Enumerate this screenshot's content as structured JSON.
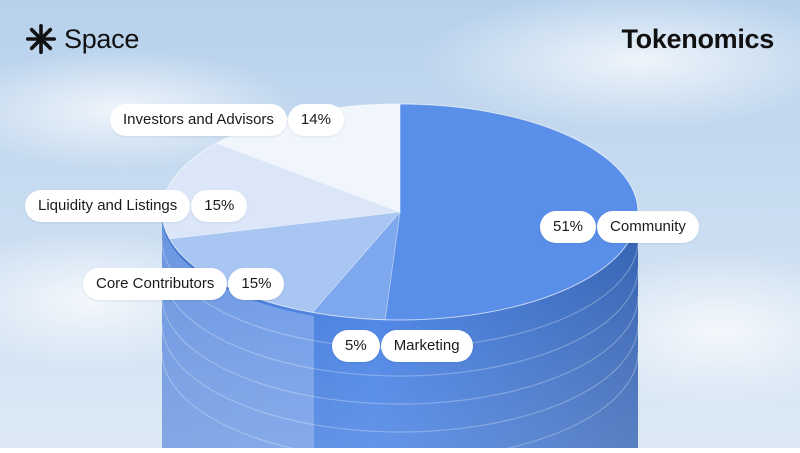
{
  "header": {
    "brand_icon": "asterisk-burst-icon",
    "brand_name": "Space",
    "title": "Tokenomics"
  },
  "colors": {
    "sky_top": "#b7d1ec",
    "sky_bottom": "#dde9f6",
    "community": "#5a8fe9",
    "marketing": "#7ea8ee",
    "core_contributors": "#a9c5f2",
    "liquidity_and_listings": "#dbe7f8",
    "investors_and_advisors": "#f1f6fd",
    "cylinder_side": "#3f7be4"
  },
  "chart_data": {
    "type": "pie",
    "title": "",
    "slices": [
      {
        "label": "Community",
        "value": 51,
        "value_label": "51%"
      },
      {
        "label": "Marketing",
        "value": 5,
        "value_label": "5%"
      },
      {
        "label": "Core Contributors",
        "value": 15,
        "value_label": "15%"
      },
      {
        "label": "Liquidity and Listings",
        "value": 15,
        "value_label": "15%"
      },
      {
        "label": "Investors and Advisors",
        "value": 14,
        "value_label": "14%"
      }
    ]
  }
}
